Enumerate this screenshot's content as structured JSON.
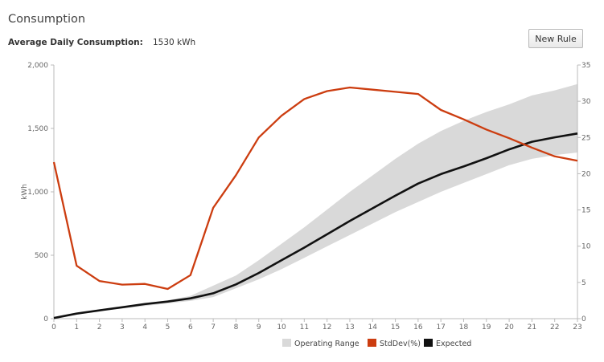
{
  "header": {
    "title": "Consumption",
    "avg_label": "Average Daily Consumption:",
    "avg_value": "1530 kWh",
    "new_rule_label": "New Rule"
  },
  "chart_data": {
    "type": "line",
    "x": [
      0,
      1,
      2,
      3,
      4,
      5,
      6,
      7,
      8,
      9,
      10,
      11,
      12,
      13,
      14,
      15,
      16,
      17,
      18,
      19,
      20,
      21,
      22,
      23
    ],
    "xlim": [
      0,
      23
    ],
    "ylabel": "kWh",
    "ylim": [
      0,
      2000
    ],
    "y_ticks": [
      0,
      500,
      1000,
      1500,
      2000
    ],
    "y_tick_labels": [
      "0",
      "500",
      "1,000",
      "1,500",
      "2,000"
    ],
    "y2lim": [
      0,
      35
    ],
    "y2_ticks": [
      0,
      5,
      10,
      15,
      20,
      25,
      30,
      35
    ],
    "grid": false,
    "legend_placement": "bottom",
    "series": [
      {
        "name": "Operating Range",
        "type": "area",
        "color": "#d9d9d9",
        "lower": [
          0,
          35,
          60,
          80,
          100,
          120,
          140,
          170,
          240,
          310,
          390,
          480,
          570,
          660,
          750,
          840,
          920,
          1000,
          1070,
          1140,
          1210,
          1260,
          1290,
          1310
        ],
        "upper": [
          0,
          45,
          70,
          95,
          120,
          145,
          180,
          260,
          340,
          460,
          590,
          720,
          860,
          1000,
          1130,
          1260,
          1380,
          1480,
          1560,
          1630,
          1690,
          1760,
          1800,
          1850
        ]
      },
      {
        "name": "StdDev(%)",
        "type": "line",
        "axis": "right",
        "color": "#cc3d10",
        "values": [
          21.6,
          7.3,
          5.2,
          4.7,
          4.8,
          4.1,
          6.0,
          15.3,
          19.8,
          25.0,
          28.0,
          30.3,
          31.4,
          31.9,
          31.6,
          31.3,
          31.0,
          28.8,
          27.5,
          26.1,
          24.9,
          23.6,
          22.4,
          21.8
        ]
      },
      {
        "name": "Expected",
        "type": "line",
        "axis": "left",
        "color": "#111111",
        "values": [
          5,
          40,
          65,
          90,
          115,
          135,
          160,
          200,
          270,
          360,
          460,
          560,
          665,
          770,
          870,
          970,
          1065,
          1140,
          1200,
          1265,
          1335,
          1395,
          1430,
          1460
        ]
      }
    ]
  }
}
